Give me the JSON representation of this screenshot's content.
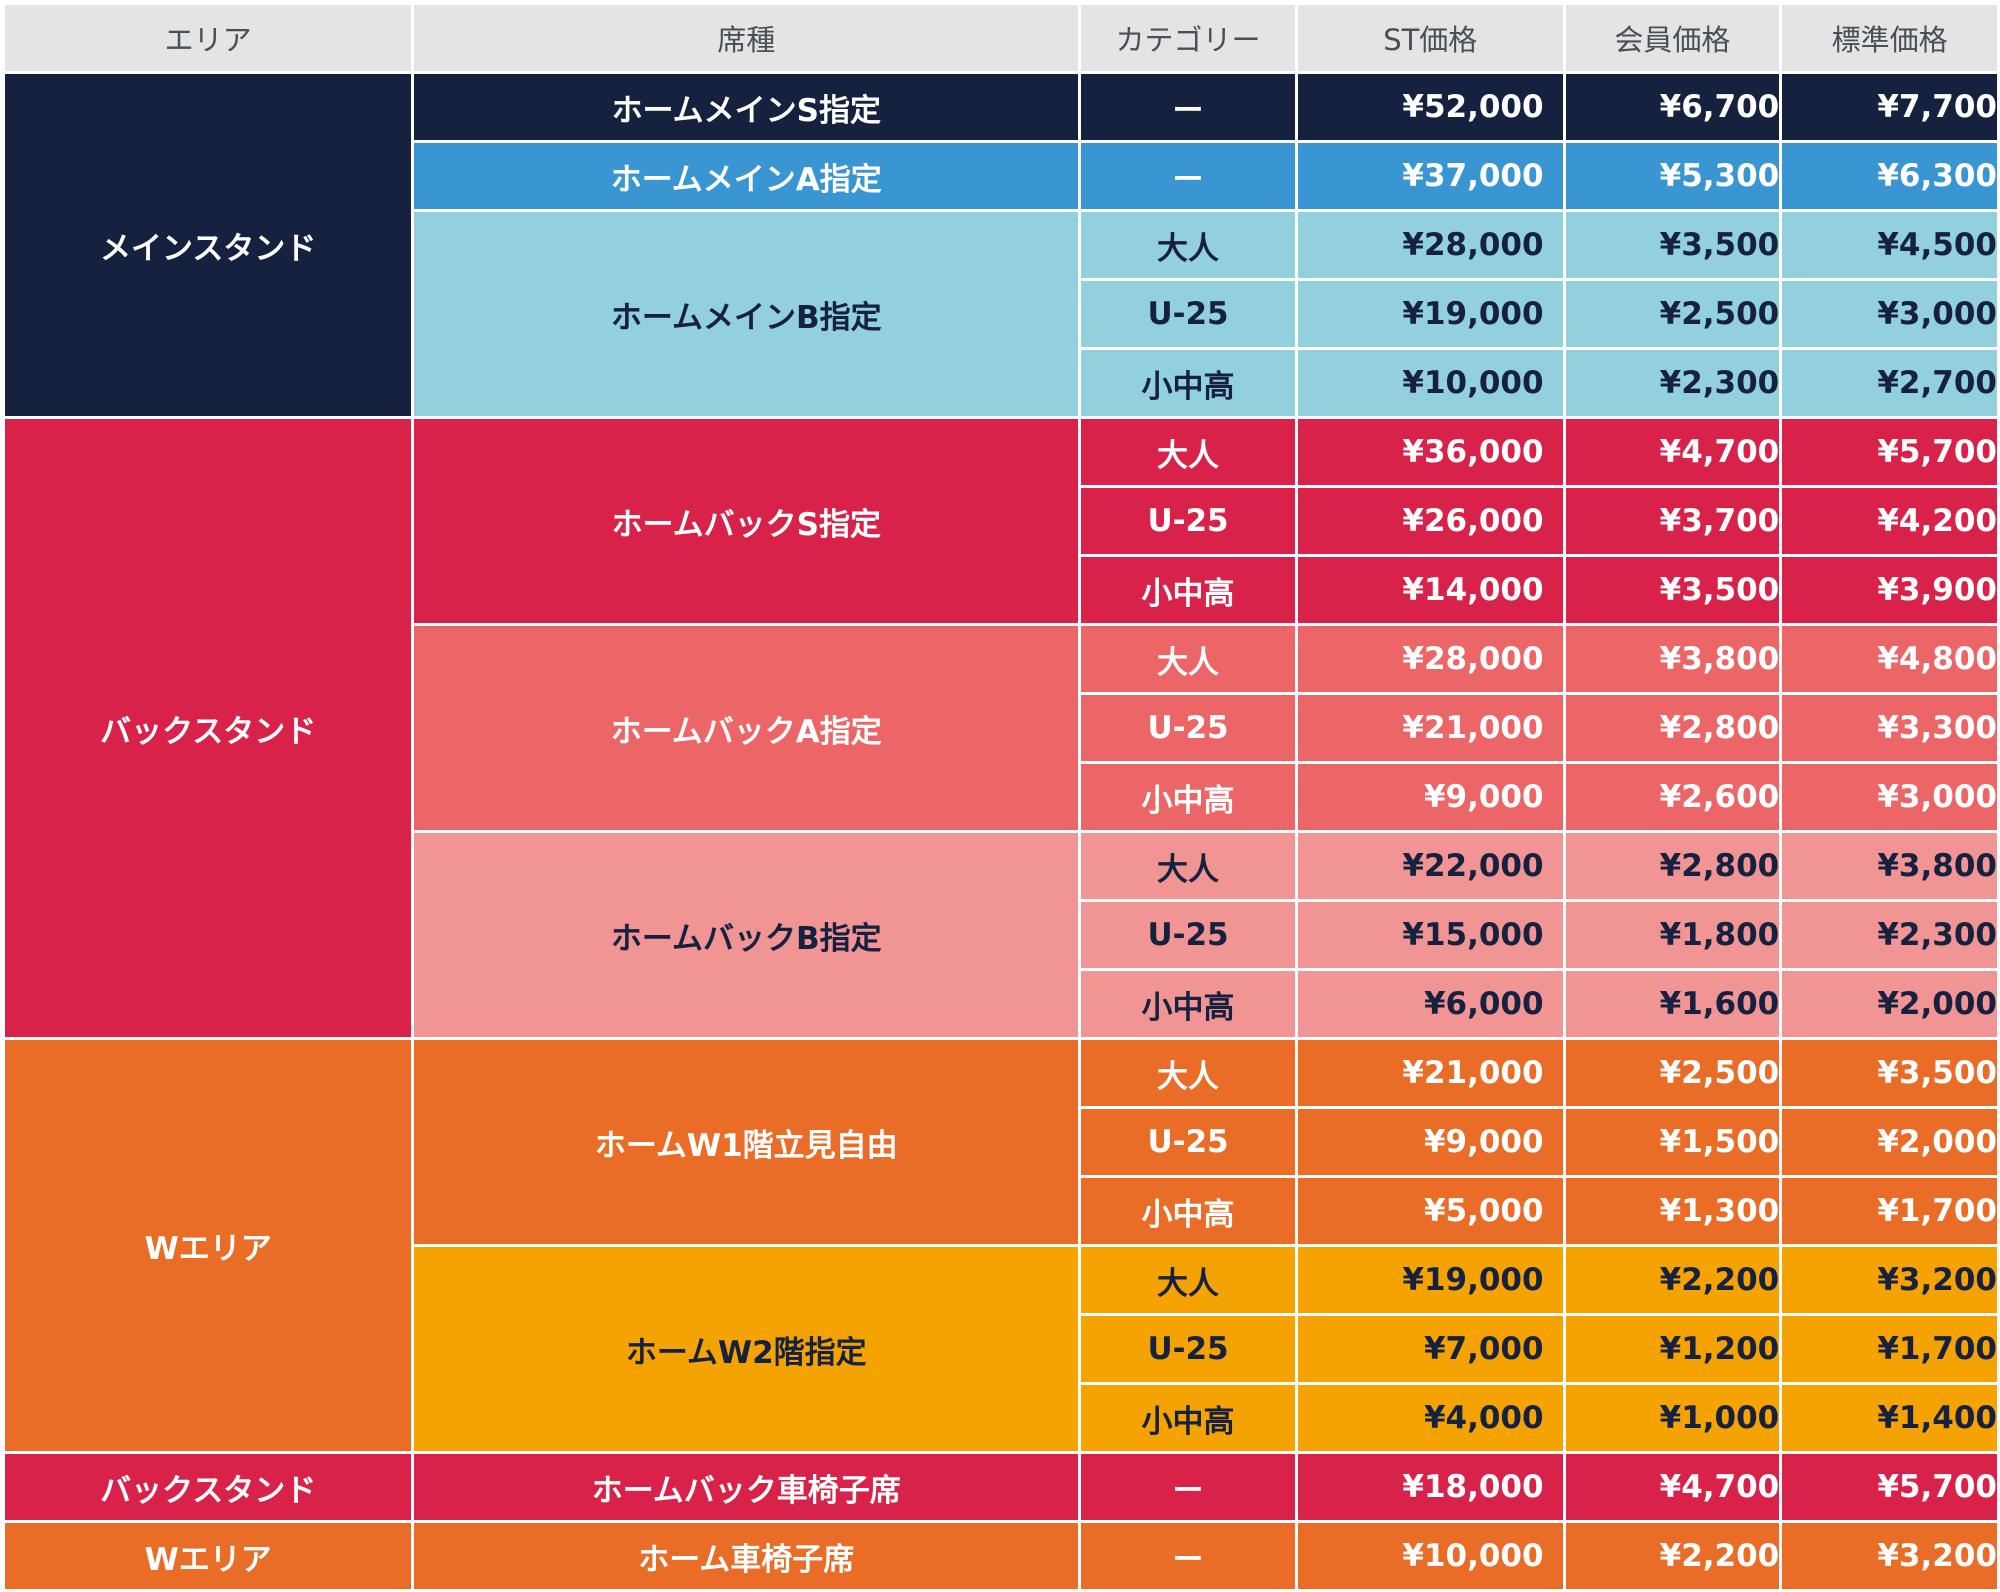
{
  "headers": {
    "area": "エリア",
    "seat": "席種",
    "category": "カテゴリー",
    "st": "ST価格",
    "member": "会員価格",
    "standard": "標準価格"
  },
  "theme_colors": {
    "navy": "#15213f",
    "blue": "#3996d3",
    "light_blue": "#91d0dc",
    "red": "#d8224a",
    "salmon": "#ec6567",
    "pink": "#f09494",
    "orange": "#e96c27",
    "yellow": "#f4a303",
    "header_gray": "#e2e4e5"
  },
  "areas": [
    {
      "name": "メインスタンド",
      "theme": "navy",
      "seats": [
        {
          "name": "ホームメインS指定",
          "theme": "navy",
          "rows": [
            {
              "category": "ー",
              "st": "¥52,000",
              "member": "¥6,700",
              "standard": "¥7,700"
            }
          ]
        },
        {
          "name": "ホームメインA指定",
          "theme": "blue",
          "rows": [
            {
              "category": "ー",
              "st": "¥37,000",
              "member": "¥5,300",
              "standard": "¥6,300"
            }
          ]
        },
        {
          "name": "ホームメインB指定",
          "theme": "lblue",
          "rows": [
            {
              "category": "大人",
              "st": "¥28,000",
              "member": "¥3,500",
              "standard": "¥4,500"
            },
            {
              "category": "U-25",
              "st": "¥19,000",
              "member": "¥2,500",
              "standard": "¥3,000"
            },
            {
              "category": "小中高",
              "st": "¥10,000",
              "member": "¥2,300",
              "standard": "¥2,700"
            }
          ]
        }
      ]
    },
    {
      "name": "バックスタンド",
      "theme": "red",
      "seats": [
        {
          "name": "ホームバックS指定",
          "theme": "red",
          "rows": [
            {
              "category": "大人",
              "st": "¥36,000",
              "member": "¥4,700",
              "standard": "¥5,700"
            },
            {
              "category": "U-25",
              "st": "¥26,000",
              "member": "¥3,700",
              "standard": "¥4,200"
            },
            {
              "category": "小中高",
              "st": "¥14,000",
              "member": "¥3,500",
              "standard": "¥3,900"
            }
          ]
        },
        {
          "name": "ホームバックA指定",
          "theme": "salmon",
          "rows": [
            {
              "category": "大人",
              "st": "¥28,000",
              "member": "¥3,800",
              "standard": "¥4,800"
            },
            {
              "category": "U-25",
              "st": "¥21,000",
              "member": "¥2,800",
              "standard": "¥3,300"
            },
            {
              "category": "小中高",
              "st": "¥9,000",
              "member": "¥2,600",
              "standard": "¥3,000"
            }
          ]
        },
        {
          "name": "ホームバックB指定",
          "theme": "pink",
          "rows": [
            {
              "category": "大人",
              "st": "¥22,000",
              "member": "¥2,800",
              "standard": "¥3,800"
            },
            {
              "category": "U-25",
              "st": "¥15,000",
              "member": "¥1,800",
              "standard": "¥2,300"
            },
            {
              "category": "小中高",
              "st": "¥6,000",
              "member": "¥1,600",
              "standard": "¥2,000"
            }
          ]
        }
      ]
    },
    {
      "name": "Wエリア",
      "theme": "orange",
      "seats": [
        {
          "name": "ホームW1階立見自由",
          "theme": "orange",
          "rows": [
            {
              "category": "大人",
              "st": "¥21,000",
              "member": "¥2,500",
              "standard": "¥3,500"
            },
            {
              "category": "U-25",
              "st": "¥9,000",
              "member": "¥1,500",
              "standard": "¥2,000"
            },
            {
              "category": "小中高",
              "st": "¥5,000",
              "member": "¥1,300",
              "standard": "¥1,700"
            }
          ]
        },
        {
          "name": "ホームW2階指定",
          "theme": "yellow",
          "rows": [
            {
              "category": "大人",
              "st": "¥19,000",
              "member": "¥2,200",
              "standard": "¥3,200"
            },
            {
              "category": "U-25",
              "st": "¥7,000",
              "member": "¥1,200",
              "standard": "¥1,700"
            },
            {
              "category": "小中高",
              "st": "¥4,000",
              "member": "¥1,000",
              "standard": "¥1,400"
            }
          ]
        }
      ]
    },
    {
      "name": "バックスタンド",
      "theme": "red",
      "seats": [
        {
          "name": "ホームバック車椅子席",
          "theme": "red",
          "rows": [
            {
              "category": "ー",
              "st": "¥18,000",
              "member": "¥4,700",
              "standard": "¥5,700"
            }
          ]
        }
      ]
    },
    {
      "name": "Wエリア",
      "theme": "orange",
      "seats": [
        {
          "name": "ホーム車椅子席",
          "theme": "orange",
          "rows": [
            {
              "category": "ー",
              "st": "¥10,000",
              "member": "¥2,200",
              "standard": "¥3,200"
            }
          ]
        }
      ]
    }
  ]
}
